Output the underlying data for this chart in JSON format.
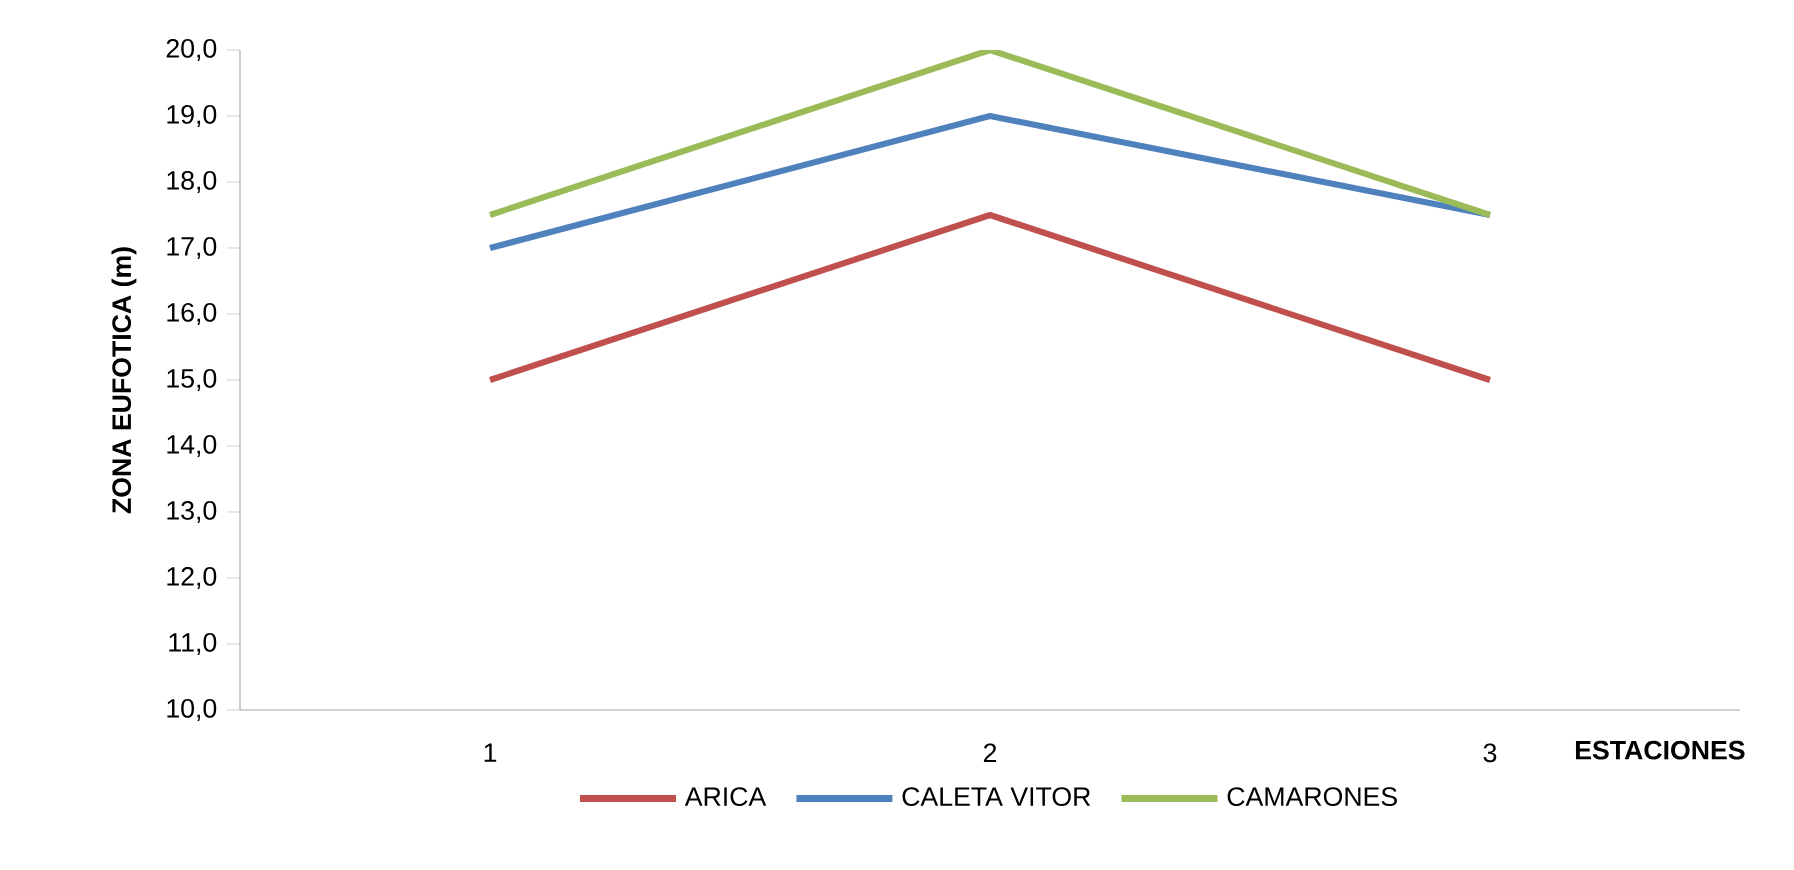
{
  "chart_data": {
    "type": "line",
    "xlabel": "ESTACIONES",
    "ylabel": "ZONA EUFOTICA (m)",
    "categories": [
      "1",
      "2",
      "3"
    ],
    "series": [
      {
        "name": "ARICA",
        "color": "#c0504d",
        "values": [
          15,
          17.5,
          15
        ]
      },
      {
        "name": "CALETA VITOR",
        "color": "#4f81bd",
        "values": [
          17,
          19,
          17.5
        ]
      },
      {
        "name": "CAMARONES",
        "color": "#9bbb59",
        "values": [
          17.5,
          20,
          17.5
        ]
      }
    ],
    "ylim": [
      10,
      20
    ],
    "yticks": [
      {
        "value": 10,
        "label": "10,0"
      },
      {
        "value": 11,
        "label": "11,0"
      },
      {
        "value": 12,
        "label": "12,0"
      },
      {
        "value": 13,
        "label": "13,0"
      },
      {
        "value": 14,
        "label": "14,0"
      },
      {
        "value": 15,
        "label": "15,0"
      },
      {
        "value": 16,
        "label": "16,0"
      },
      {
        "value": 17,
        "label": "17,0"
      },
      {
        "value": 18,
        "label": "18,0"
      },
      {
        "value": 19,
        "label": "19,0"
      },
      {
        "value": 20,
        "label": "20,0"
      }
    ],
    "legend": "bottom"
  }
}
